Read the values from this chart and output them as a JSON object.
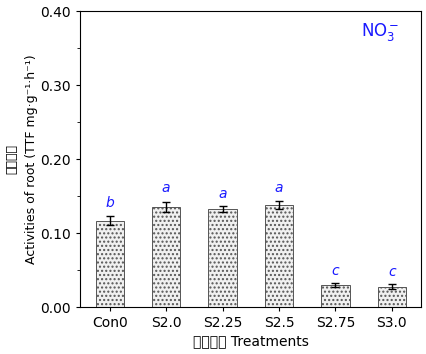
{
  "categories": [
    "Con0",
    "S2.0",
    "S2.25",
    "S2.5",
    "S2.75",
    "S3.0"
  ],
  "values": [
    0.117,
    0.135,
    0.133,
    0.138,
    0.03,
    0.028
  ],
  "errors": [
    0.006,
    0.007,
    0.004,
    0.005,
    0.003,
    0.003
  ],
  "letters": [
    "b",
    "a",
    "a",
    "a",
    "c",
    "c"
  ],
  "letter_offsets": [
    0.009,
    0.009,
    0.007,
    0.008,
    0.007,
    0.007
  ],
  "bar_color": "#f0f0f0",
  "bar_edgecolor": "#555555",
  "hatch": "....",
  "ylabel_chinese": "根系活力",
  "ylabel_english": "Activities of root (TTF mg·g⁻¹·h⁻¹)",
  "xlabel_chinese": "场强处理",
  "xlabel_english": "Treatments",
  "ylim": [
    0.0,
    0.4
  ],
  "yticks": [
    0.0,
    0.1,
    0.2,
    0.3,
    0.4
  ],
  "background_color": "#ffffff",
  "bar_width": 0.5,
  "letter_color": "#1a1aff",
  "tick_fontsize": 10,
  "label_fontsize": 9
}
